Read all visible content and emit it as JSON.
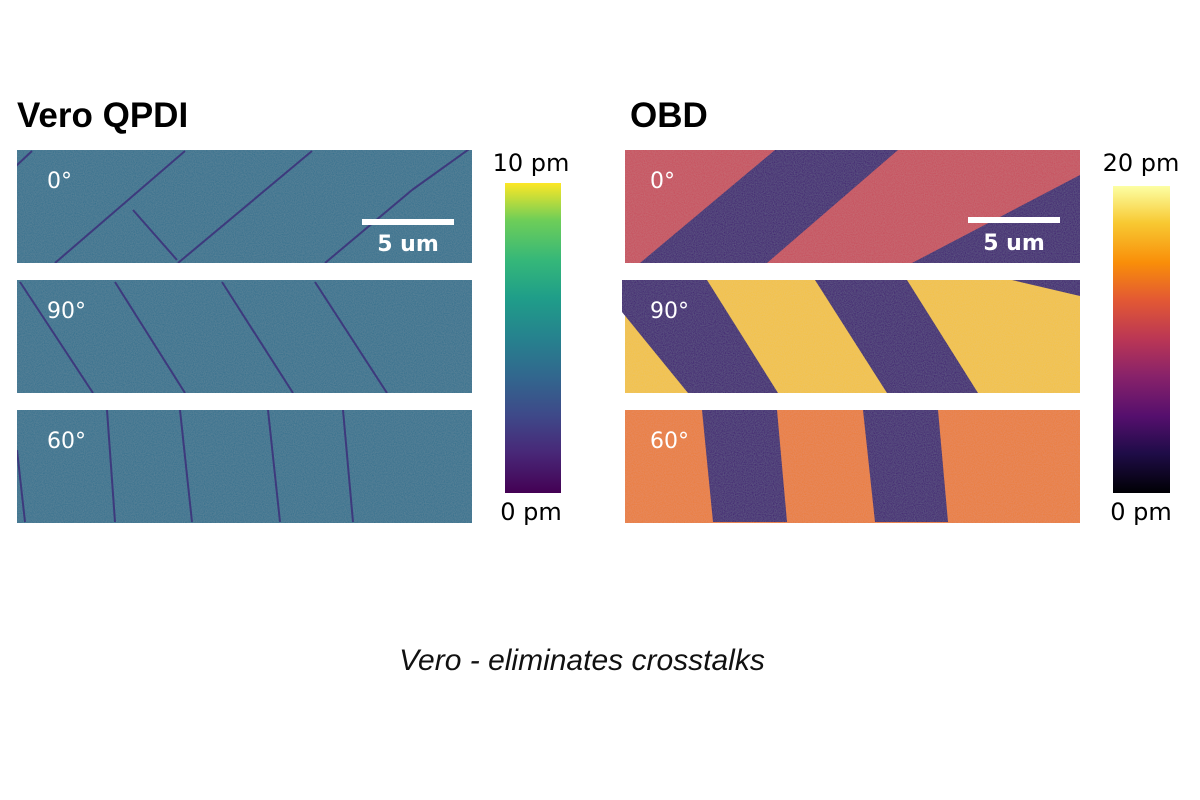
{
  "left": {
    "title": "Vero QPDI",
    "panels": [
      {
        "label": "0°"
      },
      {
        "label": "90°"
      },
      {
        "label": "60°"
      }
    ],
    "scale_bar": "5 um",
    "colorbar": {
      "max_label": "10 pm",
      "min_label": "0 pm",
      "colormap": "viridis"
    },
    "colors": {
      "background": "#2f6e8c",
      "domain_wall": "#3b2a78"
    }
  },
  "right": {
    "title": "OBD",
    "panels": [
      {
        "label": "0°"
      },
      {
        "label": "90°"
      },
      {
        "label": "60°"
      }
    ],
    "scale_bar": "5 um",
    "colorbar": {
      "max_label": "20 pm",
      "min_label": "0 pm",
      "colormap": "inferno"
    },
    "colors": {
      "panel_0": "#c84a58",
      "panel_90": "#f5c23c",
      "panel_60": "#ec7a30",
      "dark_domain": "#3a0f6e"
    }
  },
  "caption": "Vero - eliminates crosstalks"
}
